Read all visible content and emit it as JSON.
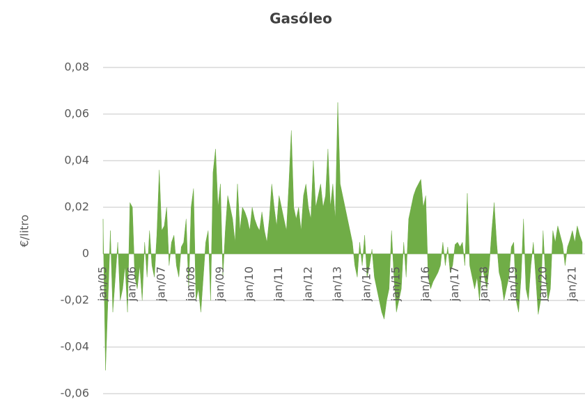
{
  "chart_data": {
    "type": "area",
    "title": "Gasóleo",
    "y_label": "€/litro",
    "color": "#70ad47",
    "grid": true,
    "ylim": [
      -0.06,
      0.08
    ],
    "yticks": [
      {
        "value": -0.06,
        "label": "-0,06"
      },
      {
        "value": -0.04,
        "label": "-0,04"
      },
      {
        "value": -0.02,
        "label": "-0,02"
      },
      0,
      {
        "value": 0.02,
        "label": "0,02"
      },
      {
        "value": 0.04,
        "label": "0,04"
      },
      {
        "value": 0.06,
        "label": "0,06"
      },
      {
        "value": 0.08,
        "label": "0,08"
      }
    ],
    "categories": [
      "jan/05",
      null,
      null,
      null,
      null,
      null,
      null,
      null,
      null,
      null,
      null,
      null,
      "jan/06",
      null,
      null,
      null,
      null,
      null,
      null,
      null,
      null,
      null,
      null,
      null,
      "jan/07",
      null,
      null,
      null,
      null,
      null,
      null,
      null,
      null,
      null,
      null,
      null,
      "jan/08",
      null,
      null,
      null,
      null,
      null,
      null,
      null,
      null,
      null,
      null,
      null,
      "jan/09",
      null,
      null,
      null,
      null,
      null,
      null,
      null,
      null,
      null,
      null,
      null,
      "jan/10",
      null,
      null,
      null,
      null,
      null,
      null,
      null,
      null,
      null,
      null,
      null,
      "jan/11",
      null,
      null,
      null,
      null,
      null,
      null,
      null,
      null,
      null,
      null,
      null,
      "jan/12",
      null,
      null,
      null,
      null,
      null,
      null,
      null,
      null,
      null,
      null,
      null,
      "jan/13",
      null,
      null,
      null,
      null,
      null,
      null,
      null,
      null,
      null,
      null,
      null,
      "jan/14",
      null,
      null,
      null,
      null,
      null,
      null,
      null,
      null,
      null,
      null,
      null,
      "jan/15",
      null,
      null,
      null,
      null,
      null,
      null,
      null,
      null,
      null,
      null,
      null,
      "jan/16",
      null,
      null,
      null,
      null,
      null,
      null,
      null,
      null,
      null,
      null,
      null,
      "jan/17",
      null,
      null,
      null,
      null,
      null,
      null,
      null,
      null,
      null,
      null,
      null,
      "jan/18",
      null,
      null,
      null,
      null,
      null,
      null,
      null,
      null,
      null,
      null,
      null,
      "jan/19",
      null,
      null,
      null,
      null,
      null,
      null,
      null,
      null,
      null,
      null,
      null,
      "jan/20",
      null,
      null,
      null,
      null,
      null,
      null,
      null,
      null,
      null,
      null,
      null,
      "jan/21",
      null,
      null,
      null,
      null
    ],
    "values": [
      0.015,
      -0.05,
      -0.02,
      0.01,
      -0.025,
      -0.01,
      0.005,
      -0.02,
      -0.015,
      -0.005,
      -0.025,
      0.022,
      0.02,
      -0.01,
      -0.015,
      -0.005,
      -0.02,
      0.005,
      -0.01,
      0.01,
      -0.005,
      -0.01,
      0.008,
      0.036,
      0.01,
      0.012,
      0.02,
      -0.005,
      0.005,
      0.008,
      -0.005,
      -0.01,
      0.003,
      0.005,
      0.015,
      -0.015,
      0.02,
      0.028,
      -0.02,
      -0.015,
      -0.025,
      -0.01,
      0.005,
      0.01,
      -0.02,
      0.035,
      0.045,
      0.02,
      0.03,
      -0.01,
      0.01,
      0.025,
      0.02,
      0.015,
      0.005,
      0.03,
      0.01,
      0.02,
      0.018,
      0.015,
      0.01,
      0.02,
      0.015,
      0.012,
      0.01,
      0.018,
      0.01,
      0.005,
      0.015,
      0.03,
      0.02,
      0.012,
      0.025,
      0.02,
      0.015,
      0.01,
      0.03,
      0.053,
      0.02,
      0.015,
      0.02,
      0.01,
      0.025,
      0.03,
      0.02,
      0.015,
      0.04,
      0.02,
      0.025,
      0.03,
      0.02,
      0.025,
      0.045,
      0.02,
      0.03,
      0.015,
      0.065,
      0.03,
      0.025,
      0.02,
      0.015,
      0.01,
      0.005,
      -0.005,
      -0.01,
      0.005,
      -0.005,
      0.008,
      -0.01,
      -0.005,
      0.002,
      -0.01,
      -0.015,
      -0.02,
      -0.025,
      -0.028,
      -0.02,
      -0.015,
      0.01,
      -0.01,
      -0.025,
      -0.02,
      -0.015,
      0.005,
      -0.01,
      0.015,
      0.02,
      0.025,
      0.028,
      0.03,
      0.032,
      0.02,
      0.025,
      -0.01,
      -0.015,
      -0.012,
      -0.01,
      -0.008,
      -0.005,
      0.005,
      -0.005,
      0.003,
      -0.008,
      -0.005,
      0.004,
      0.005,
      0.003,
      0.005,
      -0.005,
      0.026,
      -0.005,
      -0.01,
      -0.015,
      -0.01,
      -0.02,
      -0.005,
      -0.01,
      -0.015,
      -0.005,
      0.01,
      0.022,
      0.005,
      -0.008,
      -0.012,
      -0.02,
      -0.015,
      -0.01,
      0.003,
      0.005,
      -0.02,
      -0.025,
      -0.01,
      0.015,
      -0.015,
      -0.02,
      -0.005,
      0.005,
      -0.01,
      -0.026,
      -0.02,
      0.01,
      -0.01,
      -0.02,
      -0.015,
      0.01,
      0.005,
      0.012,
      0.008,
      0.004,
      -0.005,
      0.003,
      0.006,
      0.01,
      0.005,
      0.012,
      0.008,
      0.005
    ]
  }
}
